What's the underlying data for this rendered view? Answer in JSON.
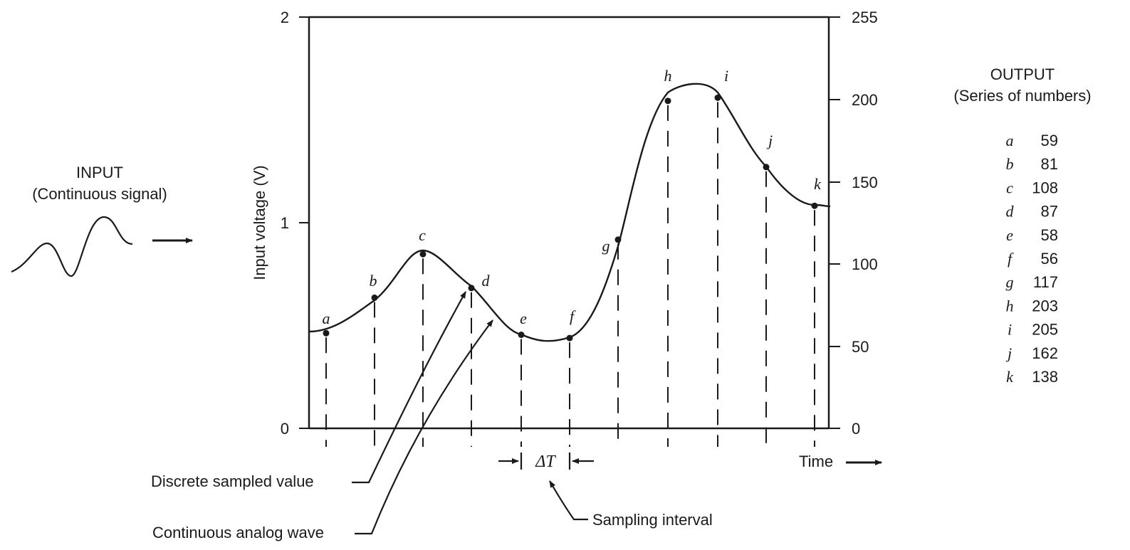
{
  "input": {
    "title": "INPUT",
    "subtitle": "(Continuous signal)"
  },
  "output": {
    "title": "OUTPUT",
    "subtitle": "(Series of numbers)",
    "table": [
      {
        "label": "a",
        "value": "59"
      },
      {
        "label": "b",
        "value": "81"
      },
      {
        "label": "c",
        "value": "108"
      },
      {
        "label": "d",
        "value": "87"
      },
      {
        "label": "e",
        "value": "58"
      },
      {
        "label": "f",
        "value": "56"
      },
      {
        "label": "g",
        "value": "117"
      },
      {
        "label": "h",
        "value": "203"
      },
      {
        "label": "i",
        "value": "205"
      },
      {
        "label": "j",
        "value": "162"
      },
      {
        "label": "k",
        "value": "138"
      }
    ]
  },
  "axes": {
    "ylabel": "Input voltage (V)",
    "left_ticks": [
      "0",
      "1",
      "2"
    ],
    "right_ticks": [
      "0",
      "50",
      "100",
      "150",
      "200",
      "255"
    ],
    "xlabel": "Time"
  },
  "annotations": {
    "delta_t": "ΔT",
    "sampling_interval": "Sampling interval",
    "discrete_sampled_value": "Discrete sampled value",
    "continuous_analog_wave": "Continuous analog wave"
  },
  "chart_data": {
    "type": "line",
    "title": "",
    "xlabel": "Time",
    "ylabel": "Input voltage (V)",
    "ylim_left": [
      0,
      2
    ],
    "ylim_right": [
      0,
      255
    ],
    "x": [
      "a",
      "b",
      "c",
      "d",
      "e",
      "f",
      "g",
      "h",
      "i",
      "j",
      "k"
    ],
    "series": [
      {
        "values": [
          59,
          81,
          108,
          87,
          58,
          56,
          117,
          203,
          205,
          162,
          138
        ]
      }
    ]
  },
  "colors": {
    "ink": "#1a1a1a",
    "background": "#ffffff"
  }
}
